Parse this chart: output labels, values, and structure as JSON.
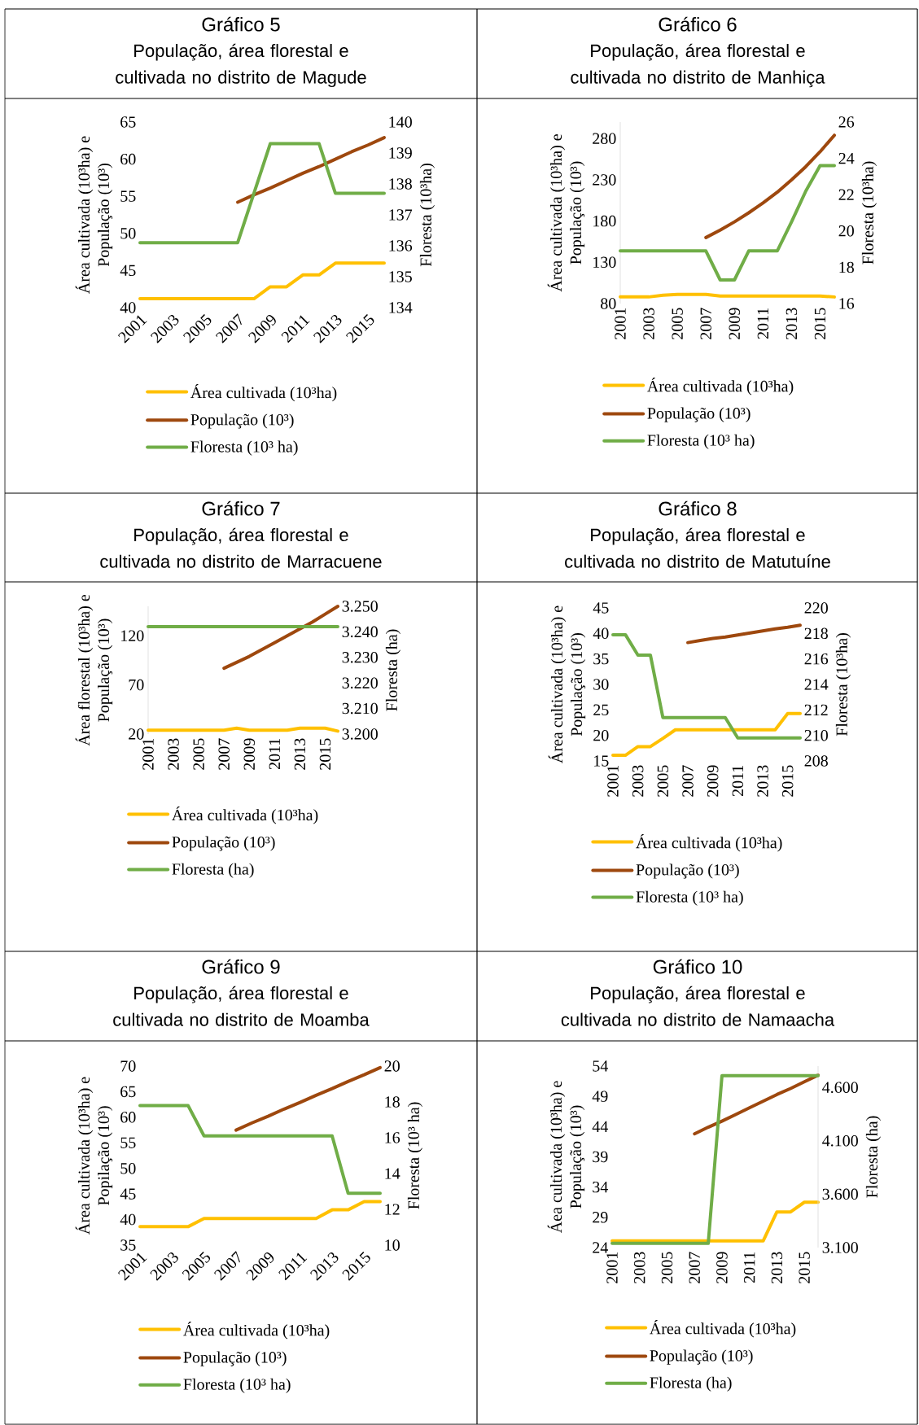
{
  "chart_data": [
    {
      "type": "line",
      "title": "Gráfico 5",
      "subtitle": "População, área florestal e cultivada no distrito de Magude",
      "ylabel": "Área cultivada (10³ha) e População (10³)",
      "y2label": "Floresta (10³ha)",
      "categories": [
        "2001",
        null,
        "2003",
        null,
        "2005",
        null,
        "2007",
        null,
        "2009",
        null,
        "2011",
        null,
        "2013",
        null,
        "2015",
        null
      ],
      "series": [
        {
          "name": "Área cultivada (10³ha)",
          "color": "#ffc000",
          "values": [
            41.2,
            41.2,
            41.2,
            41.2,
            41.2,
            41.2,
            41.2,
            41.2,
            42.8,
            42.8,
            44.4,
            44.4,
            46,
            46,
            46,
            46
          ]
        },
        {
          "name": "População (10³)",
          "color": "#9e480e",
          "values": [
            null,
            null,
            null,
            null,
            null,
            null,
            54.2,
            55.2,
            56.1,
            57.1,
            58.1,
            59.0,
            60.0,
            61.0,
            61.9,
            62.9
          ]
        },
        {
          "name": "Floresta (10³ ha)",
          "color": "#70ad47",
          "axis": "y2",
          "values": [
            136.1,
            136.1,
            136.1,
            136.1,
            136.1,
            136.1,
            136.1,
            137.7,
            139.3,
            139.3,
            139.3,
            139.3,
            137.7,
            137.7,
            137.7,
            137.7
          ]
        }
      ],
      "ylim": [
        40,
        65
      ],
      "yticks": [
        40,
        45,
        50,
        55,
        60,
        65
      ],
      "y2lim": [
        134,
        140
      ],
      "y2ticks": [
        134,
        135,
        136,
        137,
        138,
        139,
        140
      ],
      "legend": "bottom"
    },
    {
      "type": "line",
      "title": "Gráfico 6",
      "subtitle": "População, área florestal e cultivada no distrito de Manhiça",
      "ylabel": "Área cultivada (10³ha) e População (10³)",
      "y2label": "Floresta (10³ha)",
      "categories": [
        "2001",
        null,
        "2003",
        null,
        "2005",
        null,
        "2007",
        null,
        "2009",
        null,
        "2011",
        null,
        "2013",
        null,
        "2015",
        null
      ],
      "series": [
        {
          "name": "Área cultivada (10³ha)",
          "color": "#ffc000",
          "values": [
            88,
            88,
            88,
            90,
            91,
            91,
            91,
            89,
            89,
            89,
            89,
            89,
            89,
            89,
            89,
            88
          ]
        },
        {
          "name": "População (10³)",
          "color": "#9e480e",
          "values": [
            null,
            null,
            null,
            null,
            null,
            null,
            160,
            169,
            179,
            190,
            202,
            215,
            230,
            246,
            264,
            284
          ]
        },
        {
          "name": "Floresta (10³ ha)",
          "color": "#70ad47",
          "axis": "y2",
          "values": [
            18.9,
            18.9,
            18.9,
            18.9,
            18.9,
            18.9,
            18.9,
            17.3,
            17.3,
            18.9,
            18.9,
            18.9,
            20.5,
            22.2,
            23.6,
            23.6
          ]
        }
      ],
      "ylim": [
        80,
        300
      ],
      "yticks": [
        80,
        130,
        180,
        230,
        280
      ],
      "y2lim": [
        16,
        26
      ],
      "y2ticks": [
        16,
        18,
        20,
        22,
        24,
        26
      ],
      "legend": "bottom"
    },
    {
      "type": "line",
      "title": "Gráfico 7",
      "subtitle": "População, área florestal e cultivada no distrito de Marracuene",
      "ylabel": "Área florestal (10³ha) e População (10³)",
      "y2label": "Floresta (ha)",
      "categories": [
        "2001",
        null,
        "2003",
        null,
        "2005",
        null,
        "2007",
        null,
        "2009",
        null,
        "2011",
        null,
        "2013",
        null,
        "2015",
        null
      ],
      "series": [
        {
          "name": "Área cultivada (10³ha)",
          "color": "#ffc000",
          "values": [
            24,
            24,
            24,
            24,
            24,
            24,
            24,
            26,
            24,
            24,
            24,
            24,
            26,
            26,
            26,
            23
          ]
        },
        {
          "name": "População (10³)",
          "color": "#9e480e",
          "values": [
            null,
            null,
            null,
            null,
            null,
            null,
            87,
            93,
            99,
            106,
            113,
            120,
            127,
            134,
            142,
            150
          ]
        },
        {
          "name": "Floresta (ha)",
          "color": "#70ad47",
          "axis": "y2",
          "values": [
            3242,
            3242,
            3242,
            3242,
            3242,
            3242,
            3242,
            3242,
            3242,
            3242,
            3242,
            3242,
            3242,
            3242,
            3242,
            3242
          ]
        }
      ],
      "ylim": [
        20,
        150
      ],
      "yticks": [
        20,
        70,
        120
      ],
      "y2lim": [
        3200,
        3250
      ],
      "y2ticks": [
        {
          "value": 3200,
          "label": "3.200"
        },
        {
          "value": 3210,
          "label": "3.210"
        },
        {
          "value": 3220,
          "label": "3.220"
        },
        {
          "value": 3230,
          "label": "3.230"
        },
        {
          "value": 3240,
          "label": "3.240"
        },
        {
          "value": 3250,
          "label": "3.250"
        }
      ],
      "legend": "bottom"
    },
    {
      "type": "line",
      "title": "Gráfico 8",
      "subtitle": "População, área florestal e cultivada no distrito de Matutuíne",
      "ylabel": "Área cultivada (10³ha) e População (10³)",
      "y2label": "Floresta (10³ha)",
      "categories": [
        "2001",
        null,
        "2003",
        null,
        "2005",
        null,
        "2007",
        null,
        "2009",
        null,
        "2011",
        null,
        "2013",
        null,
        "2015",
        null
      ],
      "series": [
        {
          "name": "Área cultivada (10³ha)",
          "color": "#ffc000",
          "values": [
            16.1,
            16.1,
            17.8,
            17.8,
            19.4,
            21.1,
            21.1,
            21.1,
            21.1,
            21.1,
            21.1,
            21.1,
            21.1,
            21.1,
            24.3,
            24.3
          ]
        },
        {
          "name": "População (10³)",
          "color": "#9e480e",
          "values": [
            null,
            null,
            null,
            null,
            null,
            null,
            38.2,
            38.6,
            39.0,
            39.3,
            39.7,
            40.1,
            40.5,
            40.9,
            41.2,
            41.6
          ]
        },
        {
          "name": "Floresta (10³ ha)",
          "color": "#70ad47",
          "axis": "y2",
          "values": [
            217.9,
            217.9,
            216.3,
            216.3,
            211.4,
            211.4,
            211.4,
            211.4,
            211.4,
            211.4,
            209.8,
            209.8,
            209.8,
            209.8,
            209.8,
            209.8
          ]
        }
      ],
      "ylim": [
        15,
        45
      ],
      "yticks": [
        15,
        20,
        25,
        30,
        35,
        40,
        45
      ],
      "y2lim": [
        208,
        220
      ],
      "y2ticks": [
        208,
        210,
        212,
        214,
        216,
        218,
        220
      ],
      "legend": "bottom"
    },
    {
      "type": "line",
      "title": "Gráfico 9",
      "subtitle": "População, área florestal e cultivada no distrito de Moamba",
      "ylabel": "Área cultivada (10³ha) e Popilação (10³)",
      "y2label": "Floresta (10³ ha)",
      "categories": [
        "2001",
        null,
        "2003",
        null,
        "2005",
        null,
        "2007",
        null,
        "2009",
        null,
        "2011",
        null,
        "2013",
        null,
        "2015",
        null
      ],
      "series": [
        {
          "name": "Área cultivada (10³ha)",
          "color": "#ffc000",
          "values": [
            38.6,
            38.6,
            38.6,
            38.6,
            40.2,
            40.2,
            40.2,
            40.2,
            40.2,
            40.2,
            40.2,
            40.2,
            41.9,
            41.9,
            43.5,
            43.5
          ]
        },
        {
          "name": "População (10³)",
          "color": "#9e480e",
          "values": [
            null,
            null,
            null,
            null,
            null,
            null,
            57.5,
            58.9,
            60.2,
            61.6,
            62.9,
            64.3,
            65.6,
            67.0,
            68.3,
            69.7
          ]
        },
        {
          "name": "Floresta (10³ ha)",
          "color": "#70ad47",
          "axis": "y2",
          "values": [
            17.8,
            17.8,
            17.8,
            17.8,
            16.1,
            16.1,
            16.1,
            16.1,
            16.1,
            16.1,
            16.1,
            16.1,
            16.1,
            12.9,
            12.9,
            12.9
          ]
        }
      ],
      "ylim": [
        35,
        70
      ],
      "yticks": [
        35,
        40,
        45,
        50,
        55,
        60,
        65,
        70
      ],
      "y2lim": [
        10,
        20
      ],
      "y2ticks": [
        10,
        12,
        14,
        16,
        18,
        20
      ],
      "legend": "bottom"
    },
    {
      "type": "line",
      "title": "Gráfico 10",
      "subtitle": "População, área florestal e cultivada no distrito de Namaacha",
      "ylabel": "Áea cultivada (10³ha) e População (10³)",
      "y2label": "Floresta (ha)",
      "categories": [
        "2001",
        null,
        "2003",
        null,
        "2005",
        null,
        "2007",
        null,
        "2009",
        null,
        "2011",
        null,
        "2013",
        null,
        "2015",
        null
      ],
      "series": [
        {
          "name": "Área cultivada (10³ha)",
          "color": "#ffc000",
          "values": [
            25.1,
            25.1,
            25.1,
            25.1,
            25.1,
            25.1,
            25.1,
            25.1,
            25.1,
            25.1,
            25.1,
            25.1,
            29.9,
            29.9,
            31.5,
            31.5
          ]
        },
        {
          "name": "População (10³)",
          "color": "#9e480e",
          "values": [
            null,
            null,
            null,
            null,
            null,
            null,
            42.8,
            43.9,
            44.9,
            46.0,
            47.1,
            48.2,
            49.3,
            50.3,
            51.4,
            52.5
          ]
        },
        {
          "name": "Floresta (ha)",
          "color": "#70ad47",
          "axis": "y2",
          "values": [
            3140,
            3140,
            3140,
            3140,
            3140,
            3140,
            3140,
            3140,
            4710,
            4710,
            4710,
            4710,
            4710,
            4710,
            4710,
            4710
          ]
        }
      ],
      "ylim": [
        24,
        54
      ],
      "yticks": [
        24,
        29,
        34,
        39,
        44,
        49,
        54
      ],
      "y2lim": [
        3100,
        4800
      ],
      "y2ticks": [
        {
          "value": 3100,
          "label": "3.100"
        },
        {
          "value": 3600,
          "label": "3.600"
        },
        {
          "value": 4100,
          "label": "4.100"
        },
        {
          "value": 4600,
          "label": "4.600"
        }
      ],
      "legend": "bottom"
    }
  ]
}
